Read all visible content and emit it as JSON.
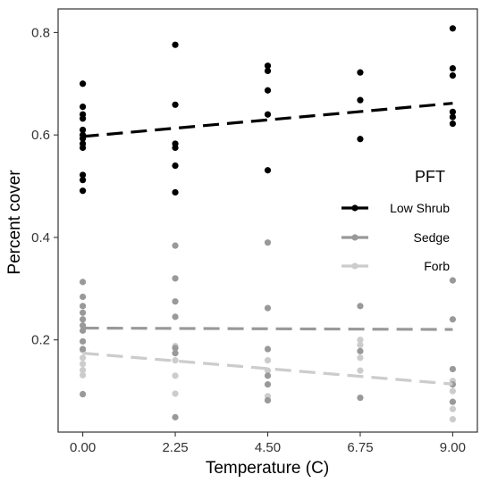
{
  "chart_data": {
    "type": "scatter",
    "xlabel": "Temperature (C)",
    "ylabel": "Percent cover",
    "xlim": [
      -0.6,
      9.6
    ],
    "ylim": [
      0.02,
      0.846
    ],
    "x_ticks": [
      0,
      2.25,
      4.5,
      6.75,
      9
    ],
    "x_tick_labels": [
      "0.00",
      "2.25",
      "4.50",
      "6.75",
      "9.00"
    ],
    "y_ticks": [
      0.2,
      0.4,
      0.6,
      0.8
    ],
    "y_tick_labels": [
      "0.2",
      "0.4",
      "0.6",
      "0.8"
    ],
    "grid": false,
    "legend": {
      "title": "PFT",
      "position": "right"
    },
    "series": [
      {
        "name": "Low Shrub",
        "color": "#000000",
        "trend": {
          "intercept": 0.597,
          "slope": 0.0072
        },
        "points": [
          [
            0,
            0.7
          ],
          [
            0,
            0.655
          ],
          [
            0,
            0.64
          ],
          [
            0,
            0.632
          ],
          [
            0,
            0.61
          ],
          [
            0,
            0.6
          ],
          [
            0,
            0.593
          ],
          [
            0,
            0.583
          ],
          [
            0,
            0.575
          ],
          [
            0,
            0.522
          ],
          [
            0,
            0.512
          ],
          [
            0,
            0.491
          ],
          [
            2.25,
            0.776
          ],
          [
            2.25,
            0.659
          ],
          [
            2.25,
            0.583
          ],
          [
            2.25,
            0.575
          ],
          [
            2.25,
            0.54
          ],
          [
            2.25,
            0.488
          ],
          [
            4.5,
            0.735
          ],
          [
            4.5,
            0.725
          ],
          [
            4.5,
            0.687
          ],
          [
            4.5,
            0.64
          ],
          [
            4.5,
            0.531
          ],
          [
            6.75,
            0.722
          ],
          [
            6.75,
            0.668
          ],
          [
            6.75,
            0.592
          ],
          [
            9,
            0.808
          ],
          [
            9,
            0.73
          ],
          [
            9,
            0.716
          ],
          [
            9,
            0.645
          ],
          [
            9,
            0.635
          ],
          [
            9,
            0.622
          ]
        ]
      },
      {
        "name": "Sedge",
        "color": "#999999",
        "trend": {
          "intercept": 0.223,
          "slope": -0.0003
        },
        "points": [
          [
            0,
            0.313
          ],
          [
            0,
            0.284
          ],
          [
            0,
            0.266
          ],
          [
            0,
            0.253
          ],
          [
            0,
            0.24
          ],
          [
            0,
            0.228
          ],
          [
            0,
            0.218
          ],
          [
            0,
            0.197
          ],
          [
            0,
            0.182
          ],
          [
            0,
            0.094
          ],
          [
            2.25,
            0.384
          ],
          [
            2.25,
            0.32
          ],
          [
            2.25,
            0.275
          ],
          [
            2.25,
            0.245
          ],
          [
            2.25,
            0.184
          ],
          [
            2.25,
            0.174
          ],
          [
            2.25,
            0.049
          ],
          [
            4.5,
            0.39
          ],
          [
            4.5,
            0.262
          ],
          [
            4.5,
            0.182
          ],
          [
            4.5,
            0.13
          ],
          [
            4.5,
            0.113
          ],
          [
            4.5,
            0.082
          ],
          [
            6.75,
            0.266
          ],
          [
            6.75,
            0.178
          ],
          [
            6.75,
            0.087
          ],
          [
            9,
            0.316
          ],
          [
            9,
            0.24
          ],
          [
            9,
            0.143
          ],
          [
            9,
            0.113
          ],
          [
            9,
            0.079
          ]
        ]
      },
      {
        "name": "Forb",
        "color": "#cccccc",
        "trend": {
          "intercept": 0.174,
          "slope": -0.0067
        },
        "points": [
          [
            0,
            0.18
          ],
          [
            0,
            0.165
          ],
          [
            0,
            0.153
          ],
          [
            0,
            0.141
          ],
          [
            0,
            0.131
          ],
          [
            2.25,
            0.188
          ],
          [
            2.25,
            0.16
          ],
          [
            2.25,
            0.13
          ],
          [
            2.25,
            0.095
          ],
          [
            4.5,
            0.16
          ],
          [
            4.5,
            0.14
          ],
          [
            4.5,
            0.09
          ],
          [
            6.75,
            0.2
          ],
          [
            6.75,
            0.19
          ],
          [
            6.75,
            0.165
          ],
          [
            6.75,
            0.14
          ],
          [
            9,
            0.12
          ],
          [
            9,
            0.1
          ],
          [
            9,
            0.065
          ],
          [
            9,
            0.045
          ]
        ]
      }
    ]
  }
}
